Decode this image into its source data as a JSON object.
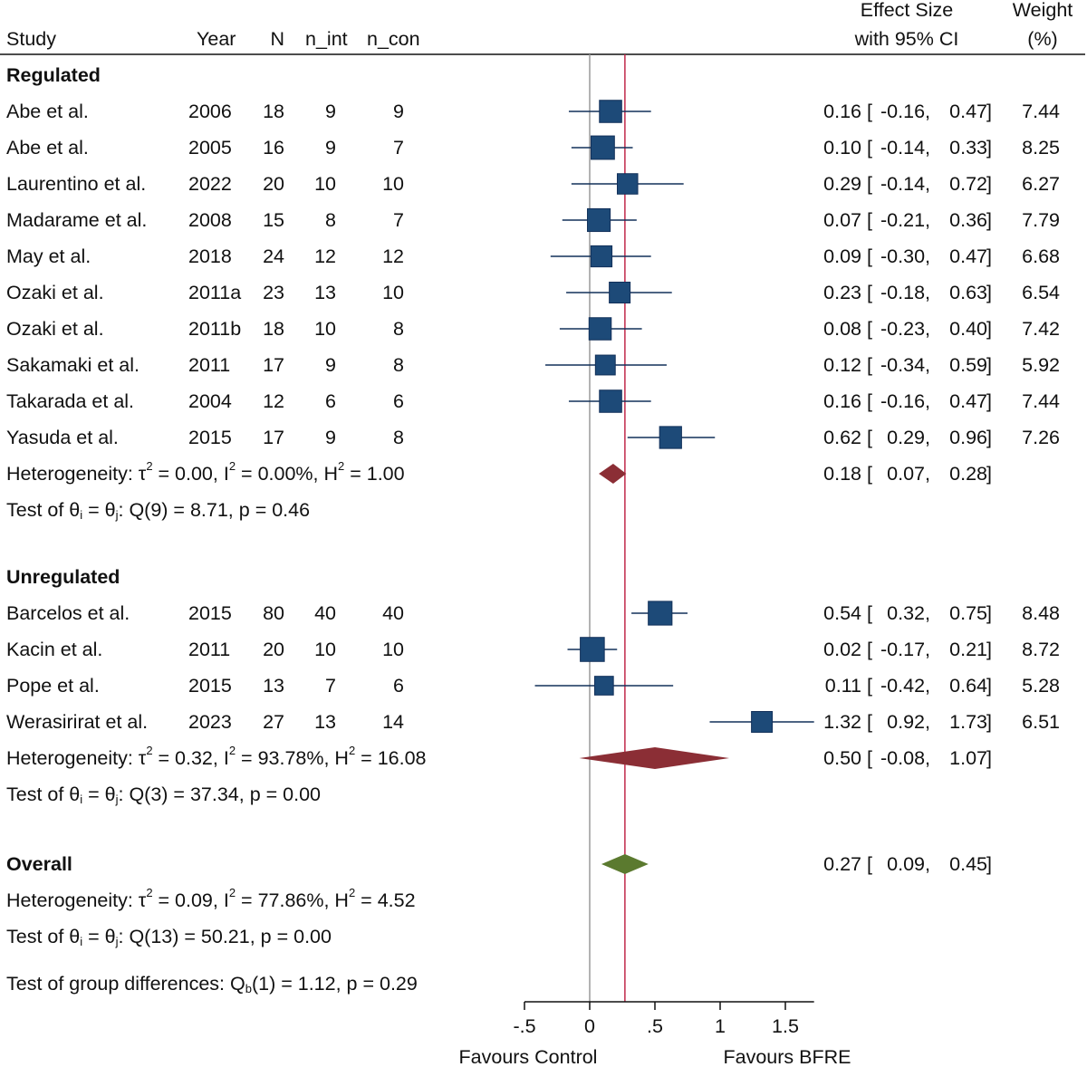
{
  "chart_data": {
    "type": "forest",
    "headers": {
      "study": "Study",
      "year": "Year",
      "n": "N",
      "n_int": "n_int",
      "n_con": "n_con",
      "es_line1": "Effect Size",
      "es_line2": "with 95% CI",
      "weight_line1": "Weight",
      "weight_line2": "(%)"
    },
    "xlim": [
      -0.5,
      1.72
    ],
    "xticks": [
      -0.5,
      0,
      0.5,
      1,
      1.5
    ],
    "xtick_labels": [
      "-.5",
      "0",
      ".5",
      "1",
      "1.5"
    ],
    "xlabel_left": "Favours Control",
    "xlabel_right": "Favours BFRE",
    "null_line": 0,
    "overall_line": 0.27,
    "colors": {
      "study_marker": "#1d4a78",
      "ci_line": "#12305a",
      "subgroup_diamond": "#8b2e35",
      "overall_diamond": "#5b7a2f",
      "overall_line": "#c0284a",
      "null_line": "#9a9a9a"
    },
    "groups": [
      {
        "name": "Regulated",
        "studies": [
          {
            "study": "Abe et al.",
            "year": "2006",
            "n": 18,
            "n_int": 9,
            "n_con": 9,
            "es": 0.16,
            "lo": -0.16,
            "hi": 0.47,
            "weight": 7.44
          },
          {
            "study": "Abe et al.",
            "year": "2005",
            "n": 16,
            "n_int": 9,
            "n_con": 7,
            "es": 0.1,
            "lo": -0.14,
            "hi": 0.33,
            "weight": 8.25
          },
          {
            "study": "Laurentino et al.",
            "year": "2022",
            "n": 20,
            "n_int": 10,
            "n_con": 10,
            "es": 0.29,
            "lo": -0.14,
            "hi": 0.72,
            "weight": 6.27
          },
          {
            "study": "Madarame et al.",
            "year": "2008",
            "n": 15,
            "n_int": 8,
            "n_con": 7,
            "es": 0.07,
            "lo": -0.21,
            "hi": 0.36,
            "weight": 7.79
          },
          {
            "study": "May et al.",
            "year": "2018",
            "n": 24,
            "n_int": 12,
            "n_con": 12,
            "es": 0.09,
            "lo": -0.3,
            "hi": 0.47,
            "weight": 6.68
          },
          {
            "study": "Ozaki et al.",
            "year": "2011a",
            "n": 23,
            "n_int": 13,
            "n_con": 10,
            "es": 0.23,
            "lo": -0.18,
            "hi": 0.63,
            "weight": 6.54
          },
          {
            "study": "Ozaki et al.",
            "year": "2011b",
            "n": 18,
            "n_int": 10,
            "n_con": 8,
            "es": 0.08,
            "lo": -0.23,
            "hi": 0.4,
            "weight": 7.42
          },
          {
            "study": "Sakamaki et al.",
            "year": "2011",
            "n": 17,
            "n_int": 9,
            "n_con": 8,
            "es": 0.12,
            "lo": -0.34,
            "hi": 0.59,
            "weight": 5.92
          },
          {
            "study": "Takarada et al.",
            "year": "2004",
            "n": 12,
            "n_int": 6,
            "n_con": 6,
            "es": 0.16,
            "lo": -0.16,
            "hi": 0.47,
            "weight": 7.44
          },
          {
            "study": "Yasuda et al.",
            "year": "2015",
            "n": 17,
            "n_int": 9,
            "n_con": 8,
            "es": 0.62,
            "lo": 0.29,
            "hi": 0.96,
            "weight": 7.26
          }
        ],
        "pooled": {
          "es": 0.18,
          "lo": 0.07,
          "hi": 0.28
        },
        "heterogeneity": {
          "tau2": "0.00",
          "i2": "0.00%",
          "h2": "1.00"
        },
        "test": {
          "df": 9,
          "q": "8.71",
          "p": "0.46"
        }
      },
      {
        "name": "Unregulated",
        "studies": [
          {
            "study": "Barcelos et al.",
            "year": "2015",
            "n": 80,
            "n_int": 40,
            "n_con": 40,
            "es": 0.54,
            "lo": 0.32,
            "hi": 0.75,
            "weight": 8.48
          },
          {
            "study": "Kacin et al.",
            "year": "2011",
            "n": 20,
            "n_int": 10,
            "n_con": 10,
            "es": 0.02,
            "lo": -0.17,
            "hi": 0.21,
            "weight": 8.72
          },
          {
            "study": "Pope et al.",
            "year": "2015",
            "n": 13,
            "n_int": 7,
            "n_con": 6,
            "es": 0.11,
            "lo": -0.42,
            "hi": 0.64,
            "weight": 5.28
          },
          {
            "study": "Werasirirat et al.",
            "year": "2023",
            "n": 27,
            "n_int": 13,
            "n_con": 14,
            "es": 1.32,
            "lo": 0.92,
            "hi": 1.73,
            "weight": 6.51
          }
        ],
        "pooled": {
          "es": 0.5,
          "lo": -0.08,
          "hi": 1.07
        },
        "heterogeneity": {
          "tau2": "0.32",
          "i2": "93.78%",
          "h2": "16.08"
        },
        "test": {
          "df": 3,
          "q": "37.34",
          "p": "0.00"
        }
      }
    ],
    "overall": {
      "name": "Overall",
      "es": 0.27,
      "lo": 0.09,
      "hi": 0.45,
      "heterogeneity": {
        "tau2": "0.09",
        "i2": "77.86%",
        "h2": "4.52"
      },
      "test": {
        "df": 13,
        "q": "50.21",
        "p": "0.00"
      }
    },
    "group_difference": {
      "df": 1,
      "q": "1.12",
      "p": "0.29"
    }
  }
}
